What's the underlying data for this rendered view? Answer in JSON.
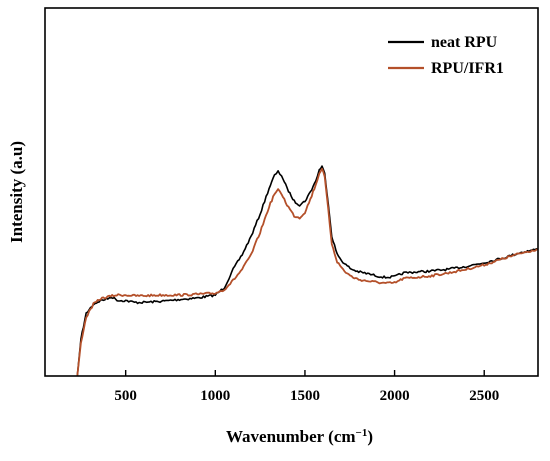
{
  "chart_data": {
    "type": "line",
    "xlabel": "Wavenumber (cm",
    "xlabel_sup": "−1",
    "xlabel_close": ")",
    "ylabel": "Intensity (a.u)",
    "xlim": [
      50,
      2800
    ],
    "ylim": [
      0,
      100
    ],
    "x_ticks": [
      500,
      1000,
      1500,
      2000,
      2500
    ],
    "y_ticks_visible": false,
    "grid": false,
    "legend_position": "top-right",
    "series": [
      {
        "name": "neat RPU",
        "color": "#000000",
        "points": [
          [
            230,
            0
          ],
          [
            250,
            10
          ],
          [
            280,
            17
          ],
          [
            320,
            19.5
          ],
          [
            360,
            20.5
          ],
          [
            400,
            21
          ],
          [
            420,
            21.5
          ],
          [
            460,
            20.5
          ],
          [
            500,
            20.5
          ],
          [
            550,
            20
          ],
          [
            600,
            20
          ],
          [
            700,
            20.3
          ],
          [
            800,
            20.8
          ],
          [
            900,
            21.2
          ],
          [
            1000,
            22
          ],
          [
            1050,
            24
          ],
          [
            1100,
            29
          ],
          [
            1150,
            33
          ],
          [
            1200,
            38
          ],
          [
            1250,
            44
          ],
          [
            1300,
            51
          ],
          [
            1330,
            54.5
          ],
          [
            1350,
            55.5
          ],
          [
            1370,
            54.5
          ],
          [
            1400,
            51
          ],
          [
            1440,
            47.5
          ],
          [
            1470,
            46.5
          ],
          [
            1500,
            47.5
          ],
          [
            1530,
            50
          ],
          [
            1560,
            53
          ],
          [
            1580,
            56
          ],
          [
            1595,
            57
          ],
          [
            1610,
            55
          ],
          [
            1630,
            47
          ],
          [
            1650,
            38
          ],
          [
            1680,
            33
          ],
          [
            1720,
            30.5
          ],
          [
            1760,
            29
          ],
          [
            1800,
            28.3
          ],
          [
            1850,
            27.8
          ],
          [
            1900,
            27.2
          ],
          [
            1950,
            26.8
          ],
          [
            2000,
            27
          ],
          [
            2050,
            28
          ],
          [
            2100,
            28.2
          ],
          [
            2200,
            28.5
          ],
          [
            2300,
            29
          ],
          [
            2400,
            29.8
          ],
          [
            2500,
            30.8
          ],
          [
            2600,
            32
          ],
          [
            2700,
            33.5
          ],
          [
            2800,
            34.5
          ]
        ]
      },
      {
        "name": "RPU/IFR1",
        "color": "#b4502a",
        "points": [
          [
            230,
            0
          ],
          [
            250,
            9
          ],
          [
            280,
            16
          ],
          [
            320,
            19.5
          ],
          [
            360,
            21
          ],
          [
            400,
            21.5
          ],
          [
            450,
            22
          ],
          [
            500,
            22
          ],
          [
            550,
            21.8
          ],
          [
            600,
            21.8
          ],
          [
            700,
            22
          ],
          [
            800,
            22
          ],
          [
            900,
            22.2
          ],
          [
            1000,
            22.5
          ],
          [
            1050,
            23.5
          ],
          [
            1100,
            26
          ],
          [
            1150,
            29
          ],
          [
            1200,
            33
          ],
          [
            1250,
            39
          ],
          [
            1300,
            46
          ],
          [
            1330,
            49.5
          ],
          [
            1350,
            50.5
          ],
          [
            1370,
            49.5
          ],
          [
            1400,
            46.5
          ],
          [
            1440,
            43.5
          ],
          [
            1470,
            43
          ],
          [
            1500,
            44.5
          ],
          [
            1530,
            48
          ],
          [
            1560,
            52
          ],
          [
            1580,
            55
          ],
          [
            1595,
            56.5
          ],
          [
            1610,
            54
          ],
          [
            1630,
            45
          ],
          [
            1650,
            36
          ],
          [
            1680,
            31
          ],
          [
            1720,
            28.5
          ],
          [
            1760,
            27
          ],
          [
            1800,
            26.2
          ],
          [
            1850,
            25.8
          ],
          [
            1900,
            25.5
          ],
          [
            1950,
            25.2
          ],
          [
            2000,
            25.3
          ],
          [
            2050,
            26.5
          ],
          [
            2100,
            26.7
          ],
          [
            2200,
            27.2
          ],
          [
            2300,
            28
          ],
          [
            2400,
            29
          ],
          [
            2500,
            30.2
          ],
          [
            2600,
            31.8
          ],
          [
            2700,
            33.3
          ],
          [
            2800,
            34.5
          ]
        ]
      }
    ]
  }
}
